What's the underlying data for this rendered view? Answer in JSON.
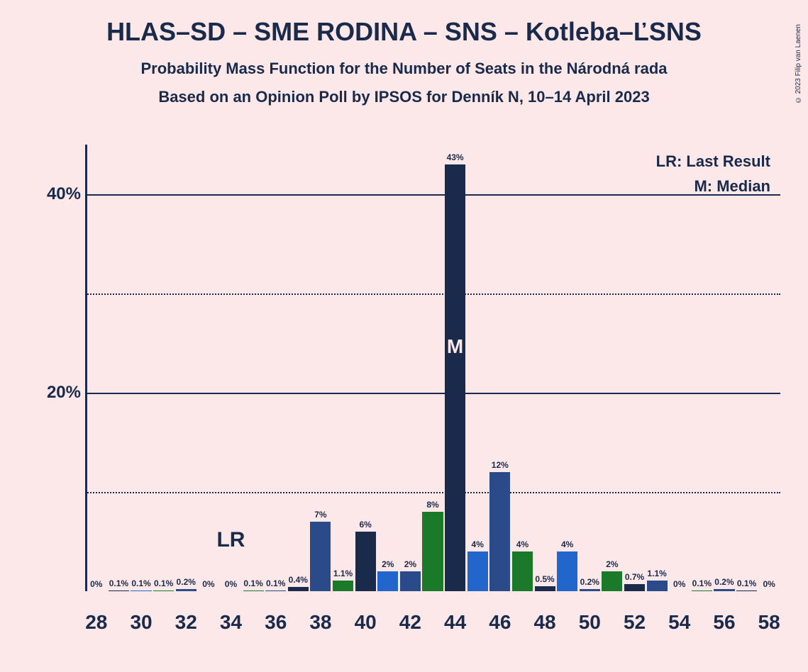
{
  "copyright": "© 2023 Filip van Laenen",
  "title": "HLAS–SD – SME RODINA – SNS – Kotleba–ĽSNS",
  "subtitle1": "Probability Mass Function for the Number of Seats in the Národná rada",
  "subtitle2": "Based on an Opinion Poll by IPSOS for Denník N, 10–14 April 2023",
  "legend": {
    "lr": "LR: Last Result",
    "m": "M: Median"
  },
  "chart": {
    "type": "bar",
    "background_color": "#fce8e8",
    "text_color": "#1a2a4a",
    "ylim": [
      0,
      45
    ],
    "y_ticks_solid": [
      20,
      40
    ],
    "y_ticks_dotted": [
      10,
      30
    ],
    "y_tick_labels": {
      "20": "20%",
      "40": "40%"
    },
    "x_min": 28,
    "x_max": 58,
    "x_ticks": [
      28,
      30,
      32,
      34,
      36,
      38,
      40,
      42,
      44,
      46,
      48,
      50,
      52,
      54,
      56,
      58
    ],
    "lr_position": 34,
    "lr_text": "LR",
    "median_position": 44,
    "median_text": "M",
    "colors": {
      "mid_blue": "#2b4a8a",
      "dark_navy": "#1a2a4a",
      "bright_blue": "#2266cc",
      "green": "#1a7a2a"
    },
    "bars": [
      {
        "x": 28,
        "value": 0,
        "label": "0%",
        "color": "mid_blue"
      },
      {
        "x": 29,
        "value": 0.1,
        "label": "0.1%",
        "color": "dark_navy"
      },
      {
        "x": 30,
        "value": 0.1,
        "label": "0.1%",
        "color": "bright_blue"
      },
      {
        "x": 31,
        "value": 0.1,
        "label": "0.1%",
        "color": "green"
      },
      {
        "x": 32,
        "value": 0.2,
        "label": "0.2%",
        "color": "mid_blue"
      },
      {
        "x": 33,
        "value": 0,
        "label": "0%",
        "color": "dark_navy"
      },
      {
        "x": 34,
        "value": 0,
        "label": "0%",
        "color": "bright_blue"
      },
      {
        "x": 35,
        "value": 0.1,
        "label": "0.1%",
        "color": "green"
      },
      {
        "x": 36,
        "value": 0.1,
        "label": "0.1%",
        "color": "mid_blue"
      },
      {
        "x": 37,
        "value": 0.4,
        "label": "0.4%",
        "color": "dark_navy"
      },
      {
        "x": 38,
        "value": 7,
        "label": "7%",
        "color": "mid_blue"
      },
      {
        "x": 39,
        "value": 1.1,
        "label": "1.1%",
        "color": "green"
      },
      {
        "x": 40,
        "value": 6,
        "label": "6%",
        "color": "dark_navy"
      },
      {
        "x": 41,
        "value": 2,
        "label": "2%",
        "color": "bright_blue"
      },
      {
        "x": 42,
        "value": 2,
        "label": "2%",
        "color": "mid_blue"
      },
      {
        "x": 43,
        "value": 8,
        "label": "8%",
        "color": "green"
      },
      {
        "x": 44,
        "value": 43,
        "label": "43%",
        "color": "dark_navy"
      },
      {
        "x": 45,
        "value": 4,
        "label": "4%",
        "color": "bright_blue"
      },
      {
        "x": 46,
        "value": 12,
        "label": "12%",
        "color": "mid_blue"
      },
      {
        "x": 47,
        "value": 4,
        "label": "4%",
        "color": "green"
      },
      {
        "x": 48,
        "value": 0.5,
        "label": "0.5%",
        "color": "dark_navy"
      },
      {
        "x": 49,
        "value": 4,
        "label": "4%",
        "color": "bright_blue"
      },
      {
        "x": 50,
        "value": 0.2,
        "label": "0.2%",
        "color": "mid_blue"
      },
      {
        "x": 51,
        "value": 2,
        "label": "2%",
        "color": "green"
      },
      {
        "x": 52,
        "value": 0.7,
        "label": "0.7%",
        "color": "dark_navy"
      },
      {
        "x": 53,
        "value": 1.1,
        "label": "1.1%",
        "color": "mid_blue"
      },
      {
        "x": 54,
        "value": 0,
        "label": "0%",
        "color": "bright_blue"
      },
      {
        "x": 55,
        "value": 0.1,
        "label": "0.1%",
        "color": "green"
      },
      {
        "x": 56,
        "value": 0.2,
        "label": "0.2%",
        "color": "mid_blue"
      },
      {
        "x": 57,
        "value": 0.1,
        "label": "0.1%",
        "color": "dark_navy"
      },
      {
        "x": 58,
        "value": 0,
        "label": "0%",
        "color": "bright_blue"
      }
    ]
  }
}
